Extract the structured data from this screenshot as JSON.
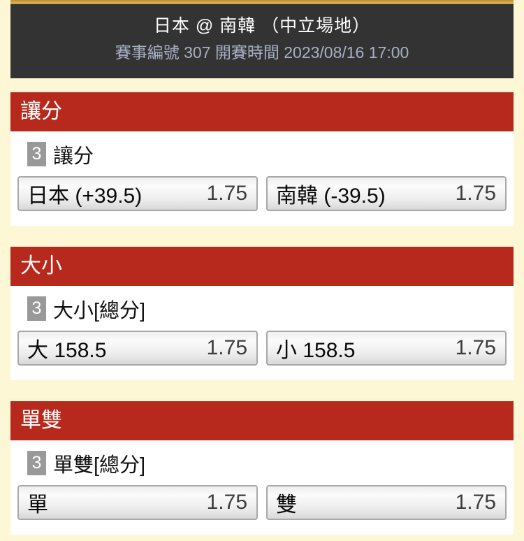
{
  "colors": {
    "page_background": "#fdf7d6",
    "accent_gold": "#d0a249",
    "header_background": "#333333",
    "header_title_text": "#ffffff",
    "header_subtitle_text": "#a9b0c4",
    "section_header_red": "#b7291c",
    "count_badge_gray": "#999999",
    "card_background": "#ffffff"
  },
  "header": {
    "title": "日本 @ 南韓 （中立場地）",
    "subtitle": "賽事編號 307 開賽時間 2023/08/16 17:00"
  },
  "sections": [
    {
      "title": "讓分",
      "market_count": "3",
      "market_label": "讓分",
      "selections": [
        {
          "name": "日本 (+39.5)",
          "odds": "1.75"
        },
        {
          "name": "南韓 (-39.5)",
          "odds": "1.75"
        }
      ]
    },
    {
      "title": "大小",
      "market_count": "3",
      "market_label": "大小[總分]",
      "selections": [
        {
          "name": "大 158.5",
          "odds": "1.75"
        },
        {
          "name": "小 158.5",
          "odds": "1.75"
        }
      ]
    },
    {
      "title": "單雙",
      "market_count": "3",
      "market_label": "單雙[總分]",
      "selections": [
        {
          "name": "單",
          "odds": "1.75"
        },
        {
          "name": "雙",
          "odds": "1.75"
        }
      ]
    }
  ]
}
